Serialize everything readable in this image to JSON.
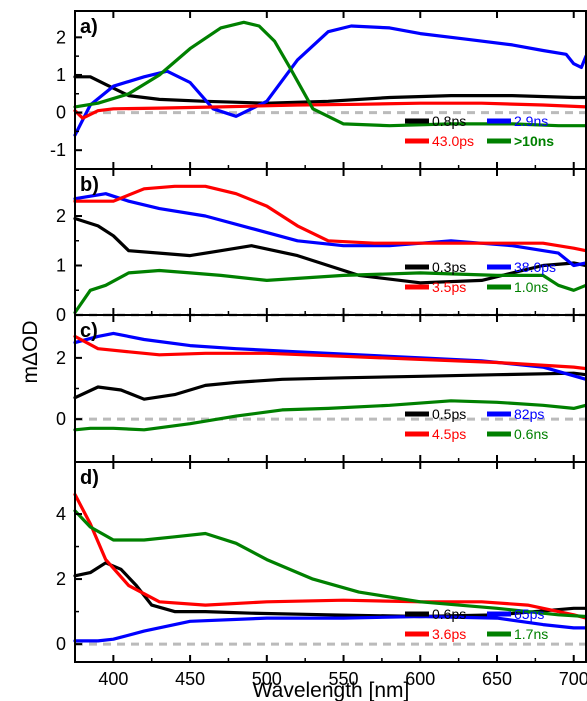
{
  "figure": {
    "xlabel": "Wavelength [nm]",
    "ylabel": "mΔOD",
    "xlim": [
      375,
      708
    ],
    "xticks": [
      400,
      450,
      500,
      550,
      600,
      650,
      700
    ],
    "colors": {
      "black": "#000000",
      "blue": "#0000ff",
      "red": "#ff0000",
      "green": "#008000",
      "zero": "#bbbbbb"
    }
  },
  "chart_data": [
    {
      "type": "line",
      "panel_label": "a)",
      "ylim": [
        -1.5,
        2.7
      ],
      "yticks": [
        -1,
        0,
        1,
        2
      ],
      "legend": [
        {
          "label": "0.8ps",
          "color": "#000000",
          "bold": false
        },
        {
          "label": "2.9ns",
          "color": "#0000ff",
          "bold": false
        },
        {
          "label": "43.0ps",
          "color": "#ff0000",
          "bold": false
        },
        {
          "label": ">10ns",
          "color": "#008000",
          "bold": true
        }
      ],
      "series": [
        {
          "name": "0.8ps",
          "color": "#000000",
          "x": [
            375,
            385,
            395,
            410,
            430,
            460,
            500,
            540,
            580,
            620,
            660,
            700,
            708
          ],
          "y": [
            0.95,
            0.95,
            0.75,
            0.45,
            0.35,
            0.3,
            0.25,
            0.3,
            0.4,
            0.45,
            0.45,
            0.4,
            0.4
          ]
        },
        {
          "name": "2.9ns",
          "color": "#0000ff",
          "x": [
            375,
            385,
            400,
            420,
            435,
            450,
            465,
            480,
            500,
            520,
            540,
            555,
            580,
            600,
            630,
            660,
            680,
            695,
            700,
            705,
            708
          ],
          "y": [
            -0.6,
            0.2,
            0.7,
            0.95,
            1.1,
            0.8,
            0.1,
            -0.1,
            0.3,
            1.4,
            2.15,
            2.3,
            2.25,
            2.1,
            1.95,
            1.8,
            1.65,
            1.55,
            1.3,
            1.2,
            1.5
          ]
        },
        {
          "name": "43.0ps",
          "color": "#ff0000",
          "x": [
            375,
            380,
            390,
            400,
            430,
            470,
            520,
            560,
            600,
            640,
            680,
            708
          ],
          "y": [
            0.05,
            -0.15,
            0.05,
            0.1,
            0.12,
            0.15,
            0.2,
            0.22,
            0.25,
            0.25,
            0.2,
            0.15
          ]
        },
        {
          "name": ">10ns",
          "color": "#008000",
          "x": [
            375,
            390,
            410,
            430,
            450,
            470,
            485,
            495,
            505,
            515,
            530,
            550,
            580,
            620,
            660,
            690,
            708
          ],
          "y": [
            0.15,
            0.25,
            0.5,
            1.0,
            1.7,
            2.25,
            2.4,
            2.3,
            1.9,
            1.2,
            0.1,
            -0.3,
            -0.35,
            -0.3,
            -0.3,
            -0.35,
            -0.35
          ]
        }
      ]
    },
    {
      "type": "line",
      "panel_label": "b)",
      "ylim": [
        0,
        2.95
      ],
      "yticks": [
        0,
        1,
        2
      ],
      "legend": [
        {
          "label": "0.3ps",
          "color": "#000000",
          "bold": false
        },
        {
          "label": "38.0ps",
          "color": "#0000ff",
          "bold": false
        },
        {
          "label": "3.5ps",
          "color": "#ff0000",
          "bold": false
        },
        {
          "label": "1.0ns",
          "color": "#008000",
          "bold": false
        }
      ],
      "series": [
        {
          "name": "0.3ps",
          "color": "#000000",
          "x": [
            375,
            390,
            400,
            410,
            430,
            450,
            470,
            490,
            520,
            560,
            600,
            640,
            680,
            700,
            708
          ],
          "y": [
            1.95,
            1.8,
            1.6,
            1.3,
            1.25,
            1.2,
            1.3,
            1.4,
            1.2,
            0.8,
            0.65,
            0.7,
            1.0,
            1.05,
            1.0
          ]
        },
        {
          "name": "38.0ps",
          "color": "#0000ff",
          "x": [
            375,
            385,
            395,
            410,
            430,
            460,
            490,
            520,
            550,
            580,
            620,
            660,
            690,
            700,
            708
          ],
          "y": [
            2.35,
            2.4,
            2.45,
            2.3,
            2.15,
            2.0,
            1.75,
            1.5,
            1.4,
            1.4,
            1.5,
            1.4,
            1.25,
            1.0,
            1.05
          ]
        },
        {
          "name": "3.5ps",
          "color": "#ff0000",
          "x": [
            375,
            400,
            420,
            440,
            460,
            480,
            500,
            520,
            540,
            570,
            600,
            640,
            680,
            700,
            708
          ],
          "y": [
            2.3,
            2.3,
            2.55,
            2.6,
            2.6,
            2.45,
            2.2,
            1.8,
            1.5,
            1.45,
            1.45,
            1.45,
            1.45,
            1.35,
            1.3
          ]
        },
        {
          "name": "1.0ns",
          "color": "#008000",
          "x": [
            375,
            385,
            395,
            410,
            430,
            450,
            470,
            500,
            550,
            600,
            650,
            680,
            690,
            700,
            708
          ],
          "y": [
            0.05,
            0.5,
            0.6,
            0.85,
            0.9,
            0.85,
            0.8,
            0.7,
            0.8,
            0.85,
            0.8,
            0.8,
            0.6,
            0.5,
            0.6
          ]
        }
      ]
    },
    {
      "type": "line",
      "panel_label": "c)",
      "ylim": [
        -1.4,
        3.4
      ],
      "yticks": [
        0,
        2
      ],
      "legend": [
        {
          "label": "0.5ps",
          "color": "#000000",
          "bold": false
        },
        {
          "label": "82ps",
          "color": "#0000ff",
          "bold": false
        },
        {
          "label": "4.5ps",
          "color": "#ff0000",
          "bold": false
        },
        {
          "label": "0.6ns",
          "color": "#008000",
          "bold": false
        }
      ],
      "series": [
        {
          "name": "0.5ps",
          "color": "#000000",
          "x": [
            375,
            390,
            405,
            420,
            440,
            460,
            480,
            510,
            550,
            600,
            650,
            700,
            708
          ],
          "y": [
            0.7,
            1.05,
            0.95,
            0.65,
            0.8,
            1.1,
            1.2,
            1.3,
            1.35,
            1.4,
            1.45,
            1.5,
            1.45
          ]
        },
        {
          "name": "82ps",
          "color": "#0000ff",
          "x": [
            375,
            390,
            400,
            420,
            450,
            480,
            520,
            560,
            600,
            640,
            680,
            708
          ],
          "y": [
            2.5,
            2.7,
            2.8,
            2.6,
            2.4,
            2.3,
            2.2,
            2.1,
            2.0,
            1.9,
            1.7,
            1.3
          ]
        },
        {
          "name": "4.5ps",
          "color": "#ff0000",
          "x": [
            375,
            390,
            410,
            430,
            460,
            500,
            550,
            600,
            650,
            700,
            708
          ],
          "y": [
            2.7,
            2.3,
            2.2,
            2.1,
            2.15,
            2.15,
            2.05,
            1.95,
            1.85,
            1.7,
            1.65
          ]
        },
        {
          "name": "0.6ns",
          "color": "#008000",
          "x": [
            375,
            385,
            400,
            420,
            450,
            480,
            510,
            540,
            580,
            620,
            650,
            680,
            700,
            708
          ],
          "y": [
            -0.35,
            -0.3,
            -0.3,
            -0.35,
            -0.15,
            0.1,
            0.3,
            0.35,
            0.45,
            0.6,
            0.55,
            0.45,
            0.35,
            0.45
          ]
        }
      ]
    },
    {
      "type": "line",
      "panel_label": "d)",
      "ylim": [
        -0.55,
        5.6
      ],
      "yticks": [
        0,
        2,
        4
      ],
      "legend": [
        {
          "label": "0.6ps",
          "color": "#000000",
          "bold": false
        },
        {
          "label": "65ps",
          "color": "#0000ff",
          "bold": false
        },
        {
          "label": "3.6ps",
          "color": "#ff0000",
          "bold": false
        },
        {
          "label": "1.7ns",
          "color": "#008000",
          "bold": false
        }
      ],
      "series": [
        {
          "name": "0.6ps",
          "color": "#000000",
          "x": [
            375,
            385,
            395,
            405,
            415,
            425,
            440,
            460,
            490,
            540,
            600,
            650,
            700,
            708
          ],
          "y": [
            2.1,
            2.2,
            2.5,
            2.3,
            1.8,
            1.2,
            1.0,
            1.0,
            0.95,
            0.9,
            0.85,
            0.9,
            1.1,
            1.1
          ]
        },
        {
          "name": "65ps",
          "color": "#0000ff",
          "x": [
            375,
            390,
            400,
            420,
            450,
            500,
            550,
            600,
            650,
            680,
            700,
            708
          ],
          "y": [
            0.1,
            0.1,
            0.15,
            0.4,
            0.7,
            0.8,
            0.8,
            0.85,
            0.8,
            0.6,
            0.5,
            0.5
          ]
        },
        {
          "name": "3.6ps",
          "color": "#ff0000",
          "x": [
            375,
            385,
            395,
            410,
            430,
            460,
            500,
            550,
            600,
            640,
            670,
            700,
            708
          ],
          "y": [
            4.6,
            3.7,
            2.6,
            1.8,
            1.3,
            1.2,
            1.3,
            1.35,
            1.3,
            1.3,
            1.2,
            0.9,
            0.8
          ]
        },
        {
          "name": "1.7ns",
          "color": "#008000",
          "x": [
            375,
            385,
            400,
            420,
            440,
            460,
            480,
            500,
            530,
            560,
            600,
            650,
            690,
            708
          ],
          "y": [
            4.1,
            3.6,
            3.2,
            3.2,
            3.3,
            3.4,
            3.1,
            2.6,
            2.0,
            1.6,
            1.3,
            1.1,
            0.9,
            0.85
          ]
        }
      ]
    }
  ]
}
